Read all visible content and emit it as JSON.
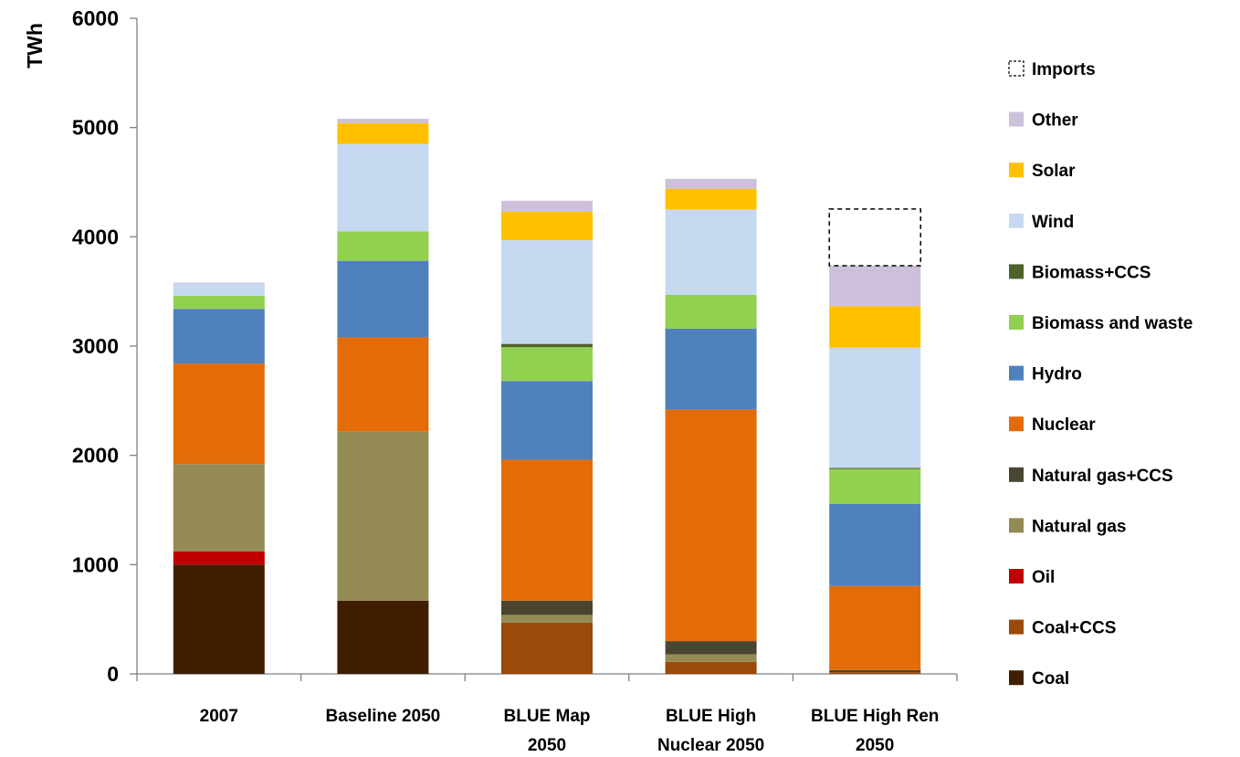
{
  "chart_data": {
    "type": "bar",
    "stacked": true,
    "ylabel": "TWh",
    "ylim": [
      0,
      6000
    ],
    "yticks": [
      0,
      1000,
      2000,
      3000,
      4000,
      5000,
      6000
    ],
    "categories": [
      [
        "2007"
      ],
      [
        "Baseline 2050"
      ],
      [
        "BLUE Map",
        "2050"
      ],
      [
        "BLUE High",
        "Nuclear 2050"
      ],
      [
        "BLUE High Ren",
        "2050"
      ]
    ],
    "series": [
      {
        "name": "Coal",
        "color": "#3f1f00",
        "values": [
          1000,
          670,
          0,
          0,
          0
        ]
      },
      {
        "name": "Coal+CCS",
        "color": "#9a4a0b",
        "values": [
          0,
          0,
          470,
          110,
          15
        ]
      },
      {
        "name": "Oil",
        "color": "#c00000",
        "values": [
          120,
          0,
          0,
          0,
          0
        ]
      },
      {
        "name": "Natural gas",
        "color": "#948a54",
        "values": [
          800,
          1550,
          70,
          70,
          0
        ]
      },
      {
        "name": "Natural gas+CCS",
        "color": "#4a4530",
        "values": [
          0,
          0,
          130,
          120,
          20
        ]
      },
      {
        "name": "Nuclear",
        "color": "#e36c09",
        "values": [
          920,
          860,
          1290,
          2120,
          770
        ]
      },
      {
        "name": "Hydro",
        "color": "#4f81bd",
        "values": [
          500,
          700,
          720,
          740,
          750
        ]
      },
      {
        "name": "Biomass and waste",
        "color": "#92d050",
        "values": [
          120,
          270,
          310,
          310,
          320
        ]
      },
      {
        "name": "Biomass+CCS",
        "color": "#4f6228",
        "values": [
          0,
          0,
          30,
          0,
          10
        ]
      },
      {
        "name": "Wind",
        "color": "#c6d9f1",
        "values": [
          110,
          800,
          950,
          780,
          1100
        ]
      },
      {
        "name": "Solar",
        "color": "#ffc000",
        "values": [
          0,
          190,
          260,
          190,
          380
        ]
      },
      {
        "name": "Other",
        "color": "#ccc0da",
        "values": [
          10,
          40,
          100,
          90,
          370
        ]
      },
      {
        "name": "Imports",
        "color": "none",
        "dashed": true,
        "values": [
          0,
          0,
          0,
          0,
          520
        ]
      }
    ],
    "legend_order": [
      "Imports",
      "Other",
      "Solar",
      "Wind",
      "Biomass+CCS",
      "Biomass and waste",
      "Hydro",
      "Nuclear",
      "Natural gas+CCS",
      "Natural gas",
      "Oil",
      "Coal+CCS",
      "Coal"
    ],
    "legend_position": "right",
    "grid": false
  }
}
